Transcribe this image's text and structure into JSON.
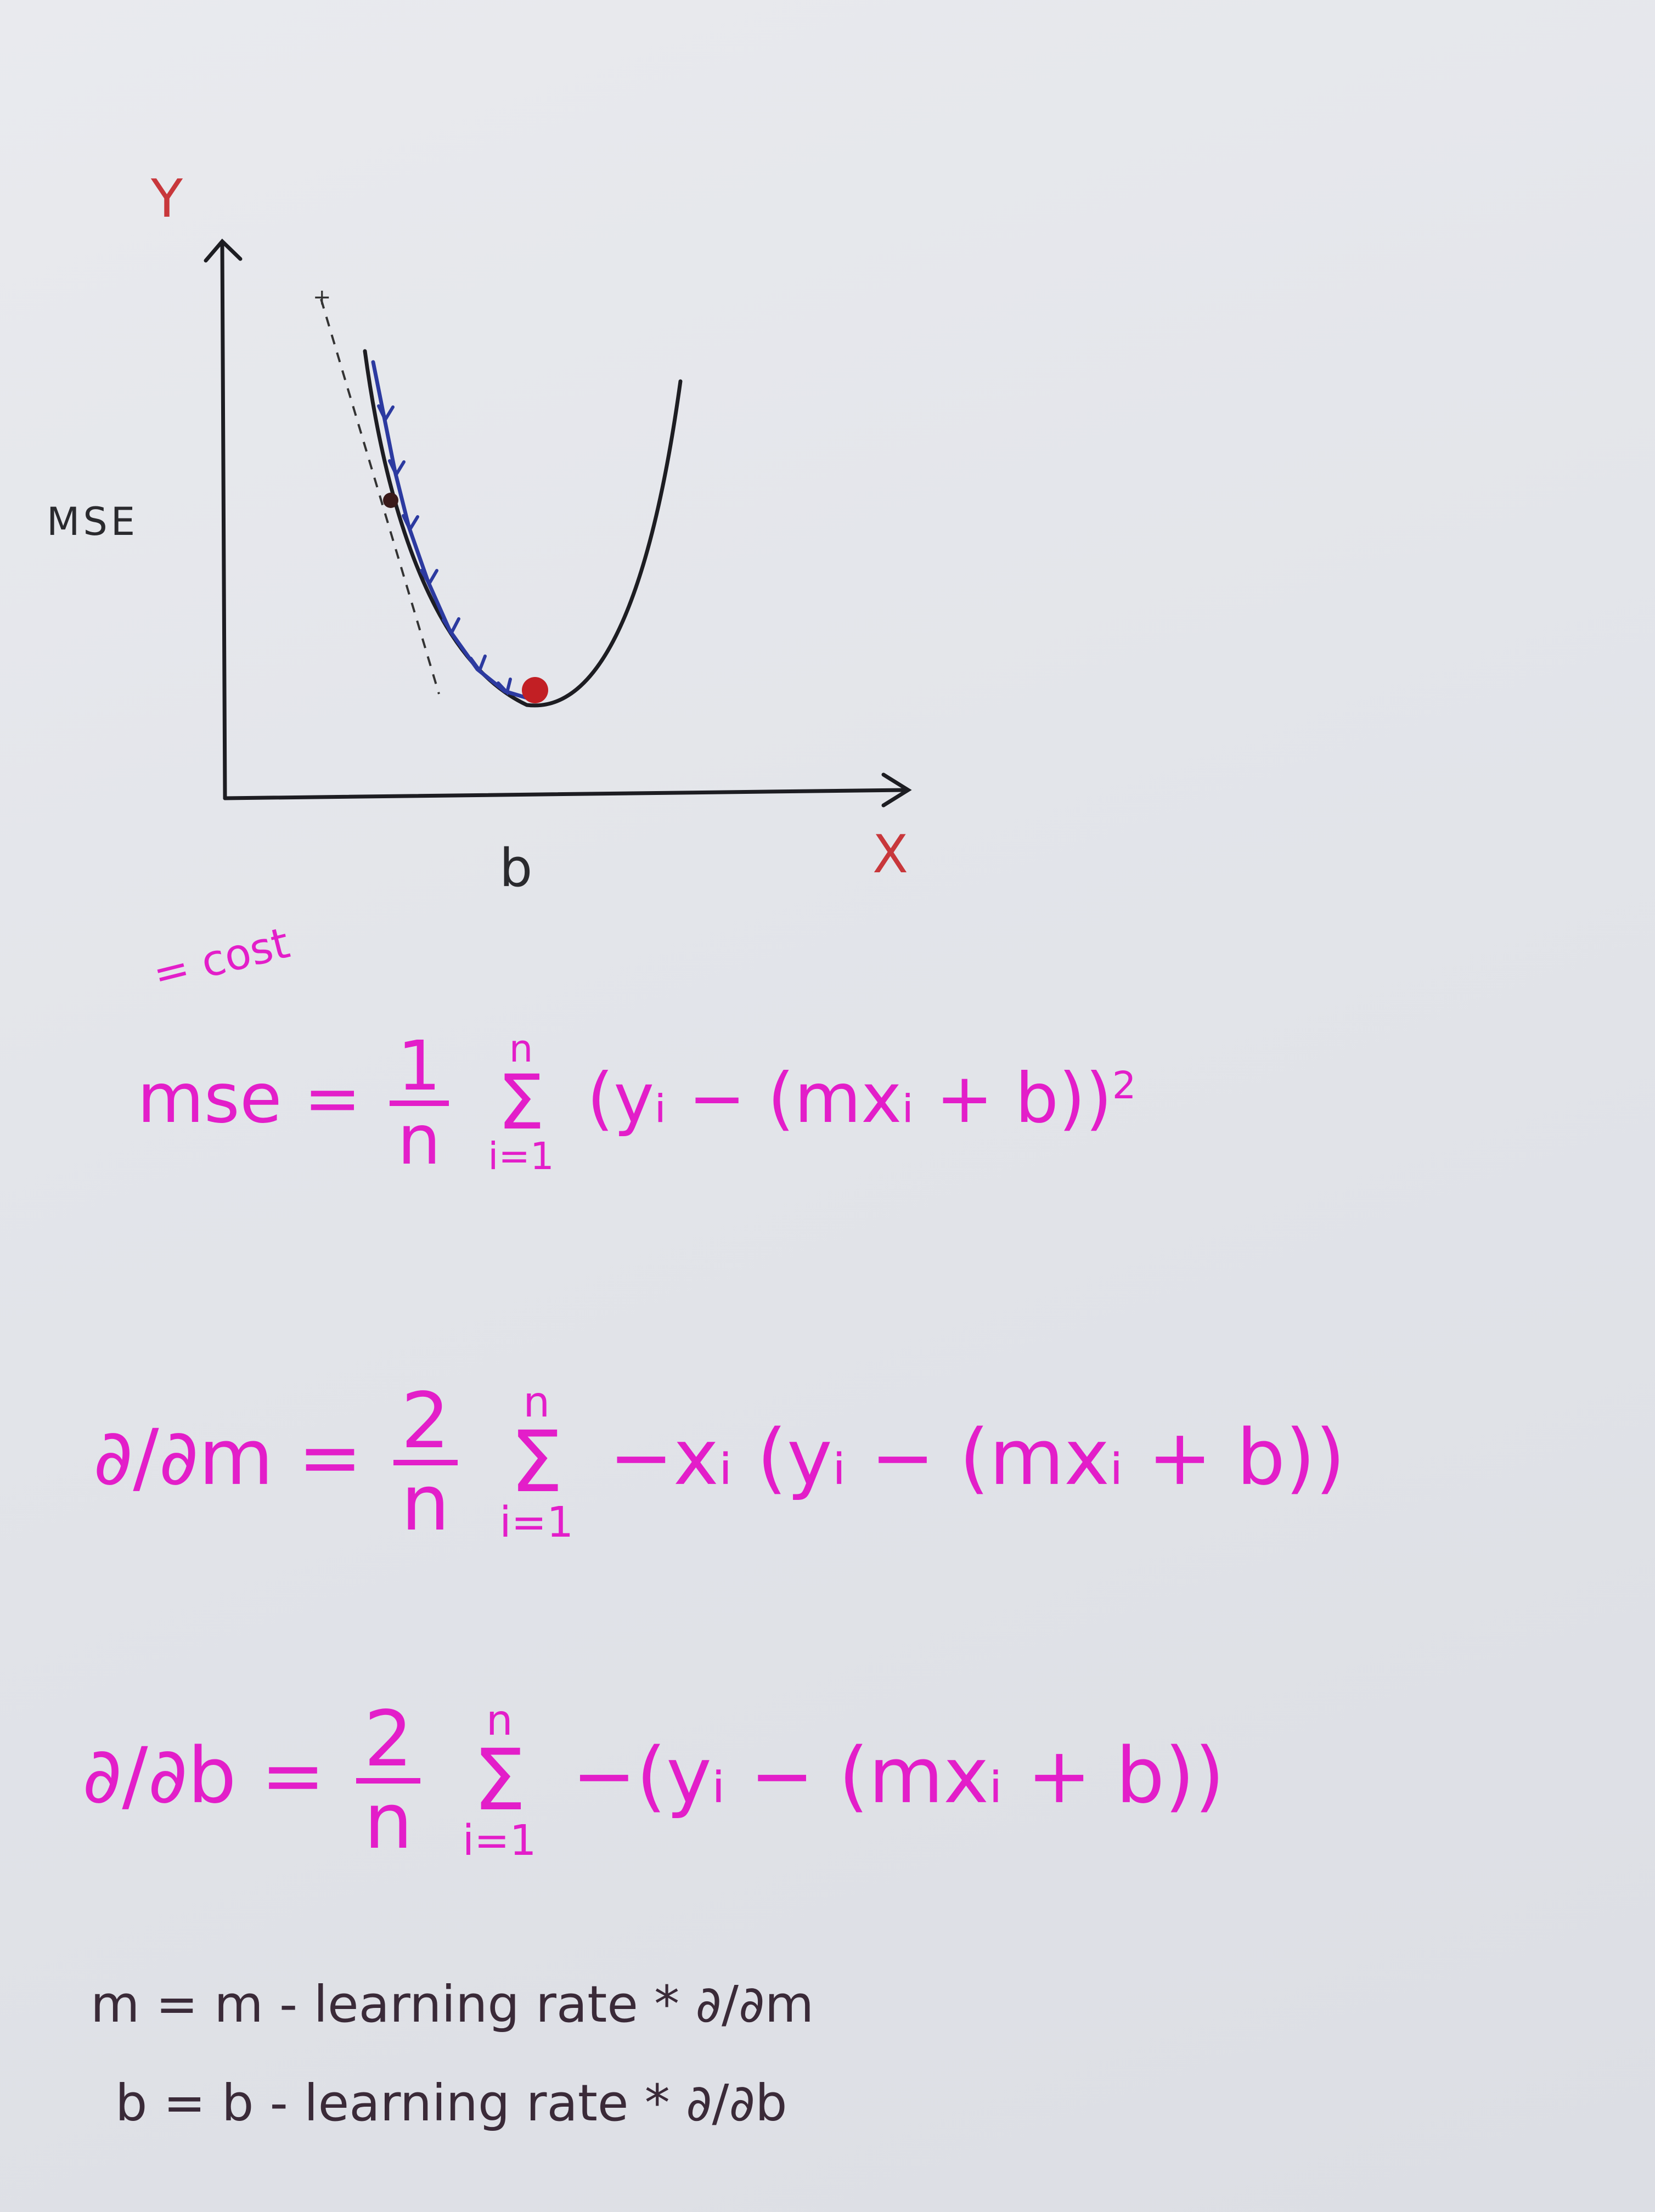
{
  "graph": {
    "y_axis_label": "Y",
    "x_axis_label": "X",
    "side_label": "MSE",
    "bottom_label": "b",
    "colors": {
      "curve": "#1d1d22",
      "steps": "#2c3aa0",
      "min_point": "#c21f24",
      "axis_label_red": "#c8373b"
    }
  },
  "equations": {
    "cost_note": "= cost",
    "mse": {
      "lhs": "mse",
      "eq": "=",
      "frac_num": "1",
      "frac_den": "n",
      "sum_top": "n",
      "sum_sigma": "Σ",
      "sum_bot": "i=1",
      "body": "(yᵢ − (mxᵢ + b))",
      "power": "2"
    },
    "dm": {
      "lhs": "∂/∂m",
      "eq": "=",
      "frac_num": "2",
      "frac_den": "n",
      "sum_top": "n",
      "sum_sigma": "Σ",
      "sum_bot": "i=1",
      "body": "−xᵢ (yᵢ − (mxᵢ + b))"
    },
    "db": {
      "lhs": "∂/∂b",
      "eq": "=",
      "frac_num": "2",
      "frac_den": "n",
      "sum_top": "n",
      "sum_sigma": "Σ",
      "sum_bot": "i=1",
      "body": "−(yᵢ − (mxᵢ + b))"
    },
    "update_m": "m =  m - learning rate * ∂/∂m",
    "update_b": "b =  b - learning rate * ∂/∂b",
    "ink_color": "#e31ec9"
  }
}
